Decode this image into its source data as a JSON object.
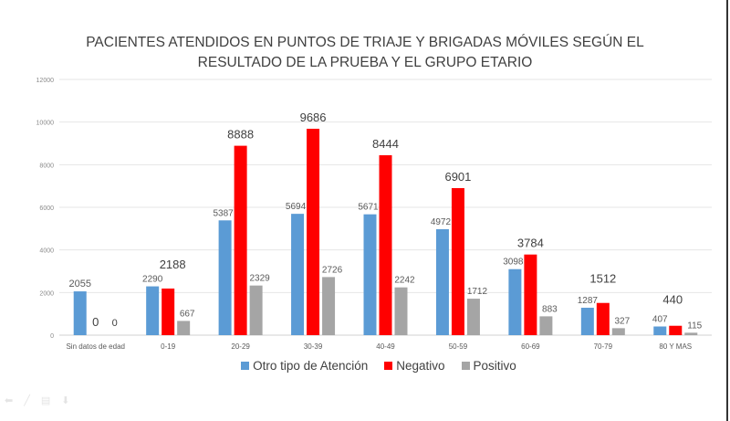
{
  "chart_data": {
    "type": "bar",
    "title_lines": [
      "PACIENTES ATENDIDOS EN PUNTOS DE TRIAJE Y BRIGADAS MÓVILES SEGÚN EL",
      "RESULTADO DE LA PRUEBA Y EL GRUPO ETARIO"
    ],
    "categories": [
      "Sin datos de edad",
      "0-19",
      "20-29",
      "30-39",
      "40-49",
      "50-59",
      "60-69",
      "70-79",
      "80 Y MAS"
    ],
    "series": [
      {
        "name": "Otro tipo de Atención",
        "color": "#5b9bd5",
        "values": [
          2055,
          2290,
          5387,
          5694,
          5671,
          4972,
          3098,
          1287,
          407
        ]
      },
      {
        "name": "Negativo",
        "color": "#ff0000",
        "values": [
          0,
          2188,
          8888,
          9686,
          8444,
          6901,
          3784,
          1512,
          440
        ]
      },
      {
        "name": "Positivo",
        "color": "#a5a5a5",
        "values": [
          0,
          667,
          2329,
          2726,
          2242,
          1712,
          883,
          327,
          115
        ]
      }
    ],
    "yticks": [
      "0",
      "2000",
      "4000",
      "6000",
      "8000",
      "10000",
      "12000"
    ],
    "ylim": [
      0,
      12000
    ],
    "xlabel": "",
    "ylabel": "",
    "grid": true,
    "legend_position": "bottom"
  },
  "slideshow_controls": [
    "prev-icon",
    "pen-icon",
    "menu-icon",
    "next-icon"
  ]
}
